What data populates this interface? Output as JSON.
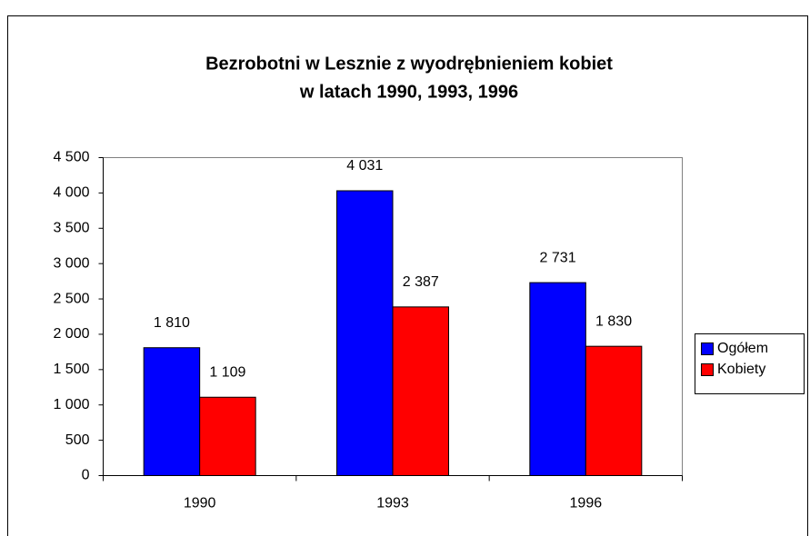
{
  "chart_data": {
    "type": "bar",
    "title": [
      "Bezrobotni w Lesznie z wyodrębnieniem kobiet",
      "w latach 1990, 1993, 1996"
    ],
    "categories": [
      "1990",
      "1993",
      "1996"
    ],
    "series": [
      {
        "name": "Ogółem",
        "color": "#0000ff",
        "values": [
          1810,
          4031,
          2731
        ],
        "value_labels": [
          "1 810",
          "4 031",
          "2 731"
        ]
      },
      {
        "name": "Kobiety",
        "color": "#ff0000",
        "values": [
          1109,
          2387,
          1830
        ],
        "value_labels": [
          "1 109",
          "2 387",
          "1 830"
        ]
      }
    ],
    "ylim": [
      0,
      4500
    ],
    "yticks": [
      0,
      500,
      {
        "value": 1000,
        "label": "1 000"
      },
      {
        "value": 1500,
        "label": "1 500"
      },
      {
        "value": 2000,
        "label": "2 000"
      },
      {
        "value": 2500,
        "label": "2 500"
      },
      {
        "value": 3000,
        "label": "3 000"
      },
      {
        "value": 3500,
        "label": "3 500"
      },
      {
        "value": 4000,
        "label": "4 000"
      },
      {
        "value": 4500,
        "label": "4 500"
      }
    ],
    "grid": false,
    "legend": "right"
  }
}
